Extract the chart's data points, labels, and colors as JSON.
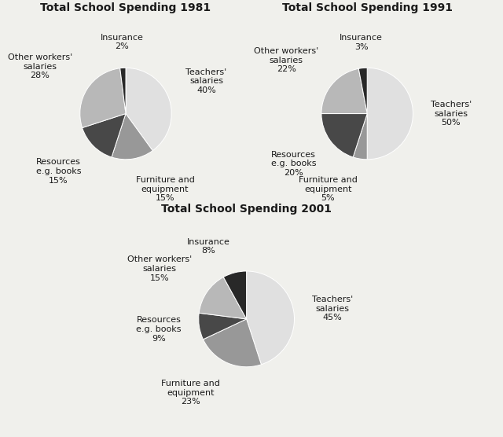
{
  "charts": [
    {
      "title": "Total School Spending 1981",
      "labels": [
        "Teachers'\nsalaries",
        "Furniture and\nequipment",
        "Resources\ne.g. books",
        "Other workers'\nsalaries",
        "Insurance"
      ],
      "values": [
        40,
        15,
        15,
        28,
        2
      ],
      "colors": [
        "#e0e0e0",
        "#989898",
        "#484848",
        "#b8b8b8",
        "#282828"
      ],
      "startangle": 90,
      "pcts": [
        "40%",
        "15%",
        "15%",
        "28%",
        "2%"
      ]
    },
    {
      "title": "Total School Spending 1991",
      "labels": [
        "Teachers'\nsalaries",
        "Furniture and\nequipment",
        "Resources\ne.g. books",
        "Other workers'\nsalaries",
        "Insurance"
      ],
      "values": [
        50,
        5,
        20,
        22,
        3
      ],
      "colors": [
        "#e0e0e0",
        "#989898",
        "#484848",
        "#b8b8b8",
        "#282828"
      ],
      "startangle": 90,
      "pcts": [
        "50%",
        "5%",
        "20%",
        "22%",
        "3%"
      ]
    },
    {
      "title": "Total School Spending 2001",
      "labels": [
        "Teachers'\nsalaries",
        "Furniture and\nequipment",
        "Resources\ne.g. books",
        "Other workers'\nsalaries",
        "Insurance"
      ],
      "values": [
        45,
        23,
        9,
        15,
        8
      ],
      "colors": [
        "#e0e0e0",
        "#989898",
        "#484848",
        "#b8b8b8",
        "#282828"
      ],
      "startangle": 90,
      "pcts": [
        "45%",
        "23%",
        "9%",
        "15%",
        "8%"
      ]
    }
  ],
  "bg_color": "#f0f0ec",
  "title_fontsize": 10,
  "label_fontsize": 8,
  "figsize": [
    6.4,
    5.56
  ]
}
